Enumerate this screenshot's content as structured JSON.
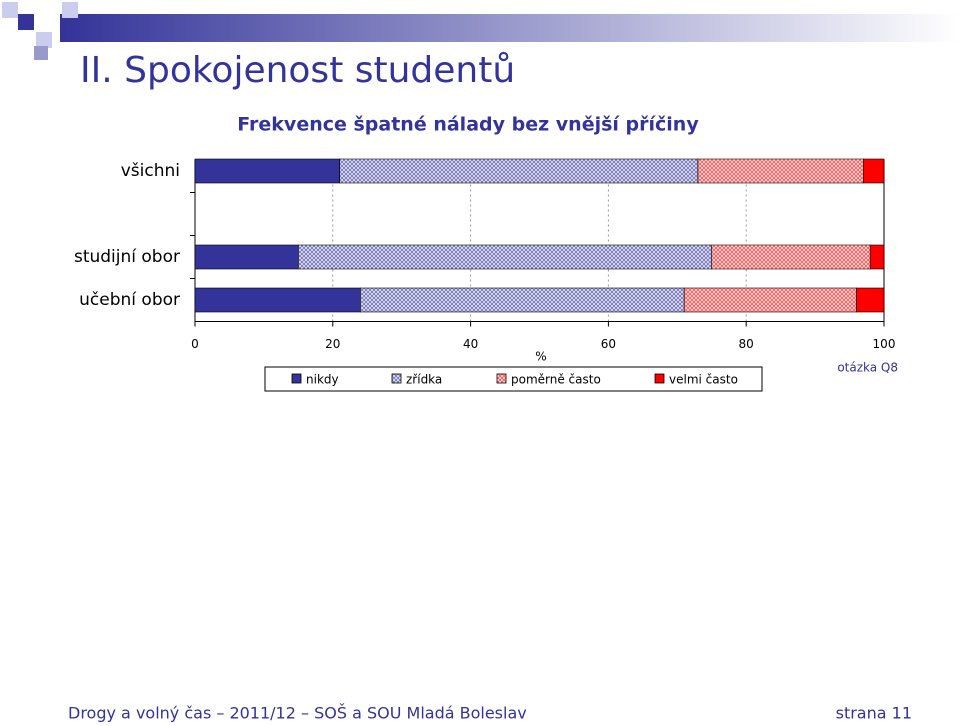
{
  "title": "II. Spokojenost studentů",
  "footer": {
    "left": "Drogy a volný čas – 2011/12 – SOŠ a SOU Mladá Boleslav",
    "right": "strana 11"
  },
  "chart_data": {
    "type": "stacked-bar-horizontal",
    "title": "Frekvence špatné nálady bez vnější příčiny",
    "categories": [
      "všichni",
      null,
      "studijní obor",
      "učební obor"
    ],
    "series": [
      {
        "name": "nikdy",
        "color": "#333399",
        "pattern": "solid",
        "values": [
          21,
          null,
          15,
          24
        ]
      },
      {
        "name": "zřídka",
        "color": "#8080c0",
        "pattern": "crosshatch",
        "values": [
          52,
          null,
          60,
          47
        ]
      },
      {
        "name": "poměrně často",
        "color": "#ff6666",
        "pattern": "crosshatch",
        "values": [
          24,
          null,
          23,
          25
        ]
      },
      {
        "name": "velmi často",
        "color": "#ff0000",
        "pattern": "solid",
        "values": [
          3,
          null,
          2,
          4
        ]
      }
    ],
    "xlabel": "%",
    "xlim": [
      0,
      100
    ],
    "xticks": [
      0,
      20,
      40,
      60,
      80,
      100
    ],
    "grid": true,
    "note": "otázka Q8"
  }
}
